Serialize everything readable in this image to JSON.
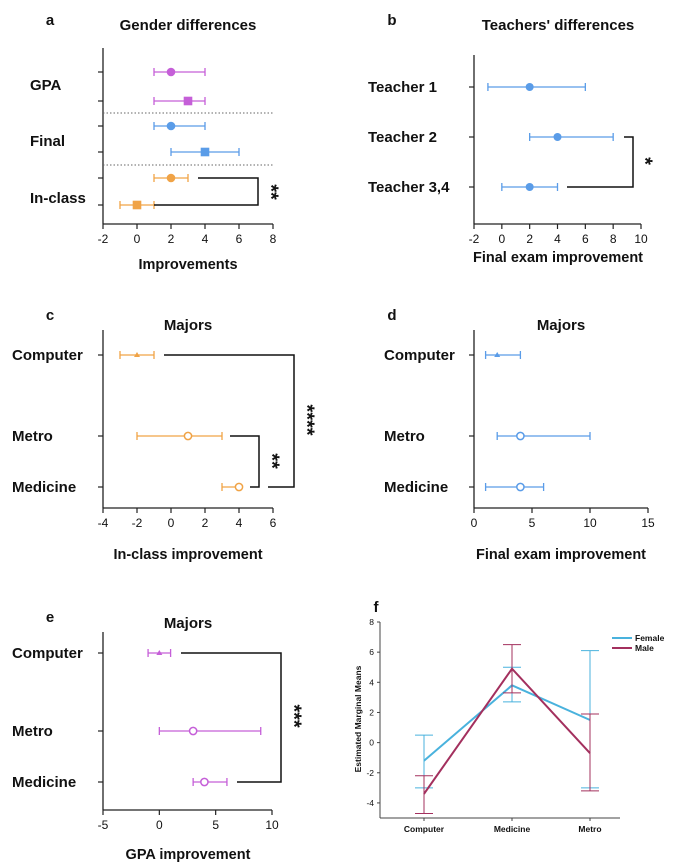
{
  "colors": {
    "purple": "#c55fd8",
    "blue": "#5a9ce8",
    "orange": "#f0a346",
    "female": "#49b2dd",
    "male": "#a3305e"
  },
  "chart_data": [
    {
      "label": "a",
      "type": "forest",
      "title": "Gender differences",
      "xlabel": "Improvements",
      "ylabel": "",
      "xlim": [
        -2,
        8
      ],
      "xticks": [
        "-2",
        "0",
        "2",
        "4",
        "6",
        "8"
      ],
      "categories": [
        "GPA",
        "Final",
        "In-class"
      ],
      "series": [
        {
          "category": "GPA",
          "color": "purple",
          "marker": "circle",
          "estimate": 2,
          "ci": [
            1,
            4
          ]
        },
        {
          "category": "GPA",
          "color": "purple",
          "marker": "square",
          "estimate": 3,
          "ci": [
            1,
            4
          ]
        },
        {
          "category": "Final",
          "color": "blue",
          "marker": "circle",
          "estimate": 2,
          "ci": [
            1,
            4
          ]
        },
        {
          "category": "Final",
          "color": "blue",
          "marker": "square",
          "estimate": 4,
          "ci": [
            2,
            6
          ]
        },
        {
          "category": "In-class",
          "color": "orange",
          "marker": "circle",
          "estimate": 2,
          "ci": [
            1,
            3
          ]
        },
        {
          "category": "In-class",
          "color": "orange",
          "marker": "square",
          "estimate": 0,
          "ci": [
            -1,
            1
          ]
        }
      ],
      "significance": [
        {
          "between": [
            "In-class (circle)",
            "In-class (square)"
          ],
          "stars": "**"
        }
      ]
    },
    {
      "label": "b",
      "type": "forest",
      "title": "Teachers' differences",
      "xlabel": "Final exam improvement",
      "ylabel": "",
      "xlim": [
        -2,
        10
      ],
      "xticks": [
        "-2",
        "0",
        "2",
        "4",
        "6",
        "8",
        "10"
      ],
      "categories": [
        "Teacher 1",
        "Teacher 2",
        "Teacher 3,4"
      ],
      "series": [
        {
          "category": "Teacher 1",
          "estimate": 2,
          "ci": [
            -1,
            6
          ]
        },
        {
          "category": "Teacher 2",
          "estimate": 4,
          "ci": [
            2,
            8
          ]
        },
        {
          "category": "Teacher 3,4",
          "estimate": 2,
          "ci": [
            0,
            4
          ]
        }
      ],
      "significance": [
        {
          "between": [
            "Teacher 2",
            "Teacher 3,4"
          ],
          "stars": "*"
        }
      ]
    },
    {
      "label": "c",
      "type": "forest",
      "title": "Majors",
      "xlabel": "In-class improvement",
      "ylabel": "",
      "xlim": [
        -4,
        6
      ],
      "xticks": [
        "-4",
        "-2",
        "0",
        "2",
        "4",
        "6"
      ],
      "categories": [
        "Computer",
        "Metro",
        "Medicine"
      ],
      "series": [
        {
          "category": "Computer",
          "estimate": -2,
          "ci": [
            -3,
            -1
          ]
        },
        {
          "category": "Metro",
          "estimate": 1,
          "ci": [
            -2,
            3
          ]
        },
        {
          "category": "Medicine",
          "estimate": 4,
          "ci": [
            3,
            4
          ]
        }
      ],
      "significance": [
        {
          "between": [
            "Metro",
            "Medicine"
          ],
          "stars": "**"
        },
        {
          "between": [
            "Computer",
            "Medicine"
          ],
          "stars": "****"
        }
      ]
    },
    {
      "label": "d",
      "type": "forest",
      "title": "Majors",
      "xlabel": "Final exam improvement",
      "ylabel": "",
      "xlim": [
        0,
        15
      ],
      "xticks": [
        "0",
        "5",
        "10",
        "15"
      ],
      "categories": [
        "Computer",
        "Metro",
        "Medicine"
      ],
      "series": [
        {
          "category": "Computer",
          "estimate": 2,
          "ci": [
            1,
            4
          ]
        },
        {
          "category": "Metro",
          "estimate": 4,
          "ci": [
            2,
            10
          ]
        },
        {
          "category": "Medicine",
          "estimate": 4,
          "ci": [
            1,
            6
          ]
        }
      ],
      "significance": []
    },
    {
      "label": "e",
      "type": "forest",
      "title": "Majors",
      "xlabel": "GPA improvement",
      "ylabel": "",
      "xlim": [
        -5,
        10
      ],
      "xticks": [
        "-5",
        "0",
        "5",
        "10"
      ],
      "categories": [
        "Computer",
        "Metro",
        "Medicine"
      ],
      "series": [
        {
          "category": "Computer",
          "estimate": 0,
          "ci": [
            -1,
            1
          ]
        },
        {
          "category": "Metro",
          "estimate": 3,
          "ci": [
            0,
            9
          ]
        },
        {
          "category": "Medicine",
          "estimate": 4,
          "ci": [
            3,
            6
          ]
        }
      ],
      "significance": [
        {
          "between": [
            "Computer",
            "Medicine"
          ],
          "stars": "***"
        }
      ]
    },
    {
      "label": "f",
      "type": "line",
      "title": "",
      "xlabel": "",
      "ylabel": "Estimated Marginal Means",
      "ylim": [
        -5,
        8
      ],
      "yticks": [
        "-4",
        "-2",
        "0",
        "2",
        "4",
        "6",
        "8"
      ],
      "categories": [
        "Computer",
        "Medicine",
        "Metro"
      ],
      "legend": "top-right",
      "series": [
        {
          "name": "Female",
          "values": [
            -1.2,
            3.8,
            1.5
          ],
          "ci_low": [
            -3.0,
            2.7,
            -3.0
          ],
          "ci_high": [
            0.5,
            5.0,
            6.1
          ]
        },
        {
          "name": "Male",
          "values": [
            -3.4,
            4.9,
            -0.7
          ],
          "ci_low": [
            -4.7,
            3.3,
            -3.2
          ],
          "ci_high": [
            -2.2,
            6.5,
            1.9
          ]
        }
      ]
    }
  ]
}
